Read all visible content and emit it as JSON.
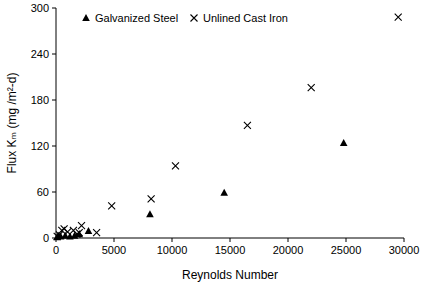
{
  "chart_data": {
    "type": "scatter",
    "x_label": "Reynolds Number",
    "y_label": "Flux Kₘ (mg /m²-d)",
    "xlim": [
      0,
      30000
    ],
    "xticks": [
      0,
      5000,
      10000,
      15000,
      20000,
      25000,
      30000
    ],
    "ylim": [
      0,
      300
    ],
    "yticks": [
      0,
      60,
      120,
      180,
      240,
      300
    ],
    "grid": false,
    "legend": "upper left",
    "series": [
      {
        "name": "Galvanized Steel",
        "color": "#000000",
        "marker": "triangle",
        "x": [
          100,
          200,
          400,
          800,
          1200,
          1600,
          2000,
          2800,
          8100,
          14500,
          24800
        ],
        "values": [
          1,
          3,
          2,
          3,
          2,
          3,
          5,
          9,
          31,
          59,
          124
        ]
      },
      {
        "name": "Unlined Cast Iron",
        "color": "#000000",
        "marker": "x",
        "x": [
          100,
          300,
          500,
          700,
          1000,
          1500,
          1800,
          2000,
          2200,
          3500,
          4800,
          8200,
          10300,
          16500,
          22000,
          29500
        ],
        "values": [
          2,
          4,
          10,
          12,
          8,
          10,
          5,
          7,
          16,
          7,
          42,
          51,
          94,
          147,
          196,
          288
        ]
      }
    ]
  }
}
